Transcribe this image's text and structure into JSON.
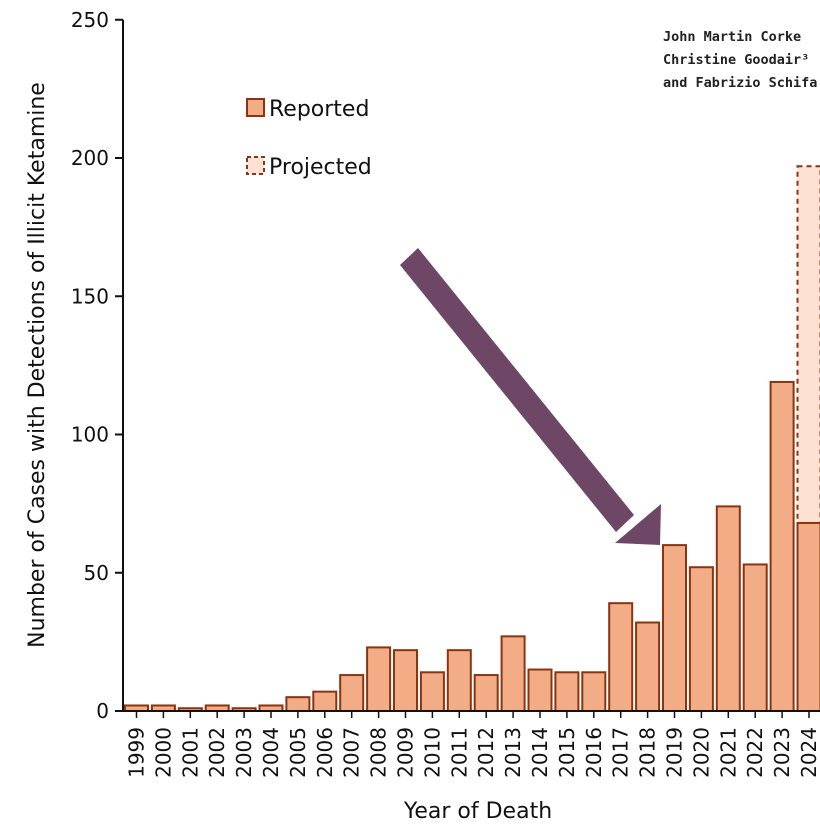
{
  "chart_data": {
    "type": "bar",
    "categories": [
      "1999",
      "2000",
      "2001",
      "2002",
      "2003",
      "2004",
      "2005",
      "2006",
      "2007",
      "2008",
      "2009",
      "2010",
      "2011",
      "2012",
      "2013",
      "2014",
      "2015",
      "2016",
      "2017",
      "2018",
      "2019",
      "2020",
      "2021",
      "2022",
      "2023",
      "2024"
    ],
    "series": [
      {
        "name": "Reported",
        "values": [
          2,
          2,
          1,
          2,
          1,
          2,
          5,
          7,
          13,
          23,
          22,
          14,
          22,
          13,
          27,
          15,
          14,
          14,
          39,
          32,
          60,
          52,
          74,
          53,
          119,
          68
        ]
      },
      {
        "name": "Projected",
        "values": [
          null,
          null,
          null,
          null,
          null,
          null,
          null,
          null,
          null,
          null,
          null,
          null,
          null,
          null,
          null,
          null,
          null,
          null,
          null,
          null,
          null,
          null,
          null,
          null,
          null,
          197
        ]
      }
    ],
    "xlabel": "Year of Death",
    "ylabel": "Number of Cases with Detections of Illicit Ketamine",
    "ylim": [
      0,
      250
    ],
    "yticks": [
      0,
      50,
      100,
      150,
      200,
      250
    ],
    "legend_position": "top-left",
    "colors": {
      "reported_fill": "#f2ac86",
      "reported_stroke": "#8a3412",
      "projected_fill": "#fde1d3",
      "projected_stroke": "#8a3412",
      "arrow": "#6e4766"
    },
    "annotation": {
      "type": "arrow",
      "color": "#6e4766",
      "points_to": "2018"
    }
  },
  "author_text": [
    "John Martin Corke",
    "Christine Goodair³",
    "and Fabrizio Schifa"
  ]
}
